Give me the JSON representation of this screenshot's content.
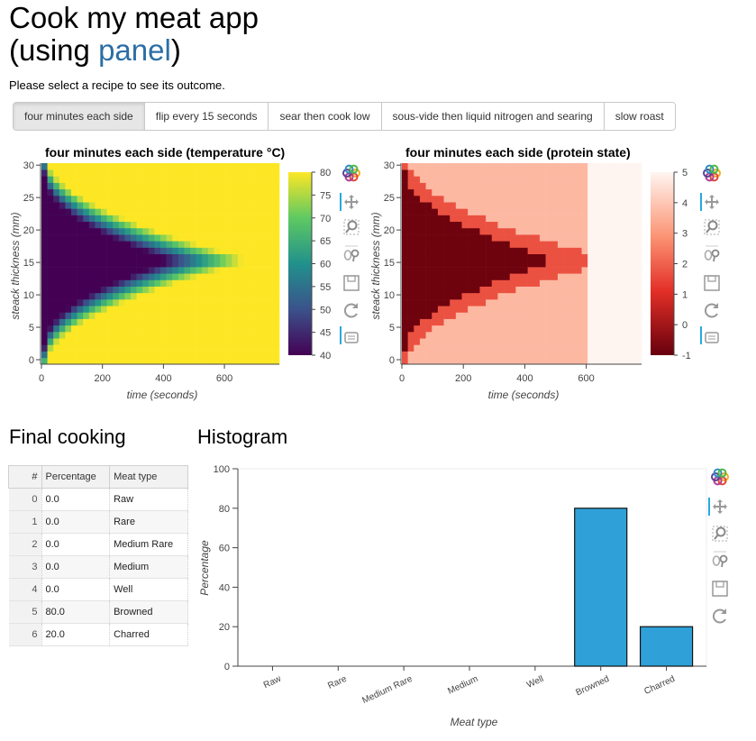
{
  "header": {
    "title_line1": "Cook my meat app",
    "title_line2_pre": "(using ",
    "title_line2_link": "panel",
    "title_line2_post": ")",
    "subtitle": "Please select a recipe to see its outcome."
  },
  "tabs": [
    {
      "label": "four minutes each side",
      "active": true
    },
    {
      "label": "flip every 15 seconds",
      "active": false
    },
    {
      "label": "sear then cook low",
      "active": false
    },
    {
      "label": "sous-vide then liquid nitrogen and searing",
      "active": false
    },
    {
      "label": "slow roast",
      "active": false
    }
  ],
  "toolbar_tools": [
    "bokeh-logo-icon",
    "pan-icon",
    "box-zoom-icon",
    "wheel-zoom-icon",
    "save-icon",
    "reset-icon",
    "hover-icon"
  ],
  "heatmap_temperature": {
    "title": "four minutes each side (temperature °C)",
    "xlabel": "time (seconds)",
    "ylabel": "steack thickness (mm)",
    "x_ticks": [
      "0",
      "200",
      "400",
      "600"
    ],
    "y_ticks": [
      "0",
      "5",
      "10",
      "15",
      "20",
      "25",
      "30"
    ],
    "colorbar_ticks": [
      "40",
      "45",
      "50",
      "55",
      "60",
      "65",
      "70",
      "75",
      "80"
    ],
    "colormap": "viridis"
  },
  "heatmap_protein": {
    "title": "four minutes each side (protein state)",
    "xlabel": "time (seconds)",
    "ylabel": "steack thickness (mm)",
    "x_ticks": [
      "0",
      "200",
      "400",
      "600"
    ],
    "y_ticks": [
      "0",
      "5",
      "10",
      "15",
      "20",
      "25",
      "30"
    ],
    "colorbar_ticks": [
      "-1",
      "0",
      "1",
      "2",
      "3",
      "4",
      "5"
    ],
    "colormap": "reds"
  },
  "final_cooking": {
    "heading": "Final cooking",
    "columns": [
      "#",
      "Percentage",
      "Meat type"
    ],
    "rows": [
      [
        "0",
        "0.0",
        "Raw"
      ],
      [
        "1",
        "0.0",
        "Rare"
      ],
      [
        "2",
        "0.0",
        "Medium Rare"
      ],
      [
        "3",
        "0.0",
        "Medium"
      ],
      [
        "4",
        "0.0",
        "Well"
      ],
      [
        "5",
        "80.0",
        "Browned"
      ],
      [
        "6",
        "20.0",
        "Charred"
      ]
    ]
  },
  "histogram": {
    "heading": "Histogram"
  },
  "chart_data": {
    "type": "bar",
    "categories": [
      "Raw",
      "Rare",
      "Medium Rare",
      "Medium",
      "Well",
      "Browned",
      "Charred"
    ],
    "values": [
      0,
      0,
      0,
      0,
      0,
      80,
      20
    ],
    "xlabel": "Meat type",
    "ylabel": "Percentage",
    "ylim": [
      0,
      100
    ],
    "y_ticks": [
      0,
      20,
      40,
      60,
      80,
      100
    ],
    "bar_color": "#2fa1d8"
  }
}
